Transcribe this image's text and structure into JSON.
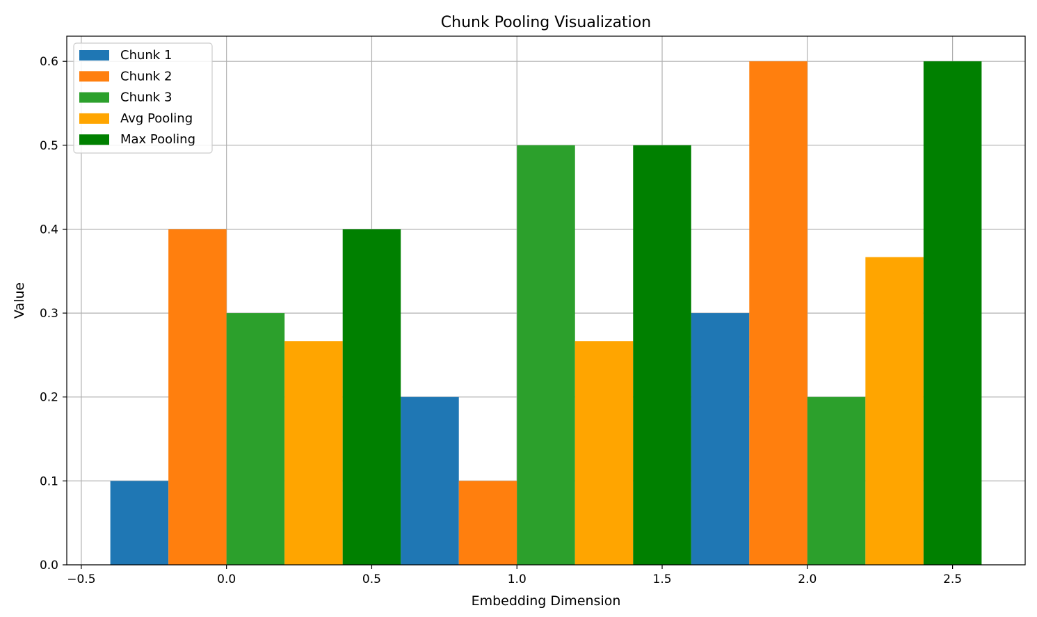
{
  "chart_data": {
    "type": "bar",
    "title": "Chunk Pooling Visualization",
    "xlabel": "Embedding Dimension",
    "ylabel": "Value",
    "x": [
      0,
      1,
      2
    ],
    "bar_width": 0.2,
    "offsets": [
      -0.3,
      -0.1,
      0.1,
      0.3,
      0.5
    ],
    "xlim": [
      -0.55,
      2.75
    ],
    "ylim": [
      0,
      0.63
    ],
    "xticks": [
      -0.5,
      0.0,
      0.5,
      1.0,
      1.5,
      2.0,
      2.5
    ],
    "xtick_labels": [
      "−0.5",
      "0.0",
      "0.5",
      "1.0",
      "1.5",
      "2.0",
      "2.5"
    ],
    "yticks": [
      0.0,
      0.1,
      0.2,
      0.3,
      0.4,
      0.5,
      0.6
    ],
    "ytick_labels": [
      "0.0",
      "0.1",
      "0.2",
      "0.3",
      "0.4",
      "0.5",
      "0.6"
    ],
    "grid": true,
    "legend_position": "top-left",
    "series": [
      {
        "name": "Chunk 1",
        "color": "#1f77b4",
        "values": [
          0.1,
          0.2,
          0.3
        ]
      },
      {
        "name": "Chunk 2",
        "color": "#ff7f0e",
        "values": [
          0.4,
          0.1,
          0.6
        ]
      },
      {
        "name": "Chunk 3",
        "color": "#2ca02c",
        "values": [
          0.3,
          0.5,
          0.2
        ]
      },
      {
        "name": "Avg Pooling",
        "color": "#ffa500",
        "values": [
          0.2667,
          0.2667,
          0.3667
        ]
      },
      {
        "name": "Max Pooling",
        "color": "#008000",
        "values": [
          0.4,
          0.5,
          0.6
        ]
      }
    ]
  }
}
